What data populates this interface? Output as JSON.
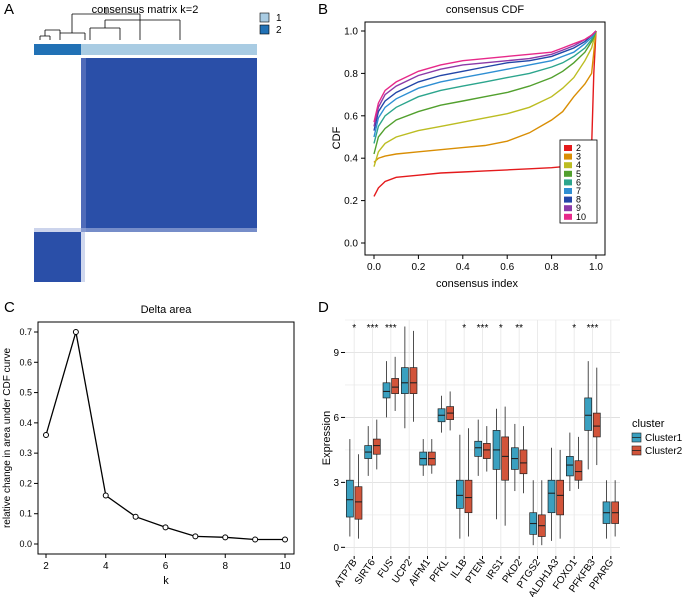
{
  "chart_data": [
    {
      "panel": "A",
      "type": "heatmap",
      "title": "consensus matrix k=2",
      "legend": [
        {
          "label": "1",
          "color": "#a9cce3"
        },
        {
          "label": "2",
          "color": "#2171b5"
        }
      ],
      "colors": {
        "high": "#2a4fa8",
        "low": "#ffffff"
      }
    },
    {
      "panel": "B",
      "type": "line",
      "title": "consensus CDF",
      "xlabel": "consensus index",
      "ylabel": "CDF",
      "xlim": [
        0,
        1
      ],
      "ylim": [
        0,
        1
      ],
      "ticks": [
        "0.0",
        "0.2",
        "0.4",
        "0.6",
        "0.8",
        "1.0"
      ],
      "x": [
        0,
        0.02,
        0.05,
        0.1,
        0.2,
        0.3,
        0.4,
        0.5,
        0.6,
        0.7,
        0.8,
        0.85,
        0.9,
        0.95,
        0.98,
        0.99,
        1.0
      ],
      "series": [
        {
          "name": "2",
          "color": "#e41a1c",
          "values": [
            0.22,
            0.26,
            0.29,
            0.31,
            0.32,
            0.33,
            0.335,
            0.34,
            0.345,
            0.35,
            0.355,
            0.36,
            0.37,
            0.38,
            0.45,
            0.8,
            1.0
          ]
        },
        {
          "name": "3",
          "color": "#d98e04",
          "values": [
            0.38,
            0.4,
            0.41,
            0.42,
            0.43,
            0.44,
            0.45,
            0.46,
            0.48,
            0.52,
            0.58,
            0.62,
            0.69,
            0.75,
            0.8,
            0.9,
            1.0
          ]
        },
        {
          "name": "4",
          "color": "#bcbd22",
          "values": [
            0.36,
            0.43,
            0.47,
            0.5,
            0.53,
            0.55,
            0.57,
            0.59,
            0.61,
            0.64,
            0.69,
            0.73,
            0.78,
            0.86,
            0.92,
            0.96,
            1.0
          ]
        },
        {
          "name": "5",
          "color": "#52a02e",
          "values": [
            0.42,
            0.5,
            0.54,
            0.58,
            0.62,
            0.65,
            0.67,
            0.69,
            0.71,
            0.74,
            0.78,
            0.81,
            0.85,
            0.9,
            0.95,
            0.97,
            1.0
          ]
        },
        {
          "name": "6",
          "color": "#2ca58d",
          "values": [
            0.47,
            0.55,
            0.6,
            0.64,
            0.69,
            0.72,
            0.74,
            0.76,
            0.78,
            0.8,
            0.83,
            0.85,
            0.88,
            0.92,
            0.96,
            0.98,
            1.0
          ]
        },
        {
          "name": "7",
          "color": "#2f8fd3",
          "values": [
            0.5,
            0.59,
            0.64,
            0.68,
            0.73,
            0.76,
            0.78,
            0.8,
            0.82,
            0.84,
            0.86,
            0.88,
            0.9,
            0.94,
            0.97,
            0.985,
            1.0
          ]
        },
        {
          "name": "8",
          "color": "#2346a8",
          "values": [
            0.53,
            0.62,
            0.67,
            0.71,
            0.76,
            0.79,
            0.81,
            0.83,
            0.85,
            0.86,
            0.88,
            0.9,
            0.92,
            0.95,
            0.98,
            0.99,
            1.0
          ]
        },
        {
          "name": "9",
          "color": "#8b3aa8",
          "values": [
            0.55,
            0.64,
            0.7,
            0.74,
            0.79,
            0.82,
            0.84,
            0.85,
            0.86,
            0.87,
            0.89,
            0.91,
            0.93,
            0.96,
            0.98,
            0.99,
            1.0
          ]
        },
        {
          "name": "10",
          "color": "#e7298a",
          "values": [
            0.57,
            0.66,
            0.72,
            0.76,
            0.81,
            0.84,
            0.86,
            0.87,
            0.88,
            0.89,
            0.9,
            0.92,
            0.94,
            0.96,
            0.98,
            0.99,
            1.0
          ]
        }
      ]
    },
    {
      "panel": "C",
      "type": "line",
      "title": "Delta area",
      "xlabel": "k",
      "ylabel": "relative change in area under CDF curve",
      "x": [
        2,
        3,
        4,
        5,
        6,
        7,
        8,
        9,
        10
      ],
      "values": [
        0.36,
        0.7,
        0.16,
        0.09,
        0.055,
        0.025,
        0.022,
        0.015,
        0.015
      ],
      "xlim": [
        2,
        10
      ],
      "ylim": [
        0,
        0.7
      ],
      "xticks": [
        2,
        4,
        6,
        8,
        10
      ],
      "yticks": [
        "0.0",
        "0.1",
        "0.2",
        "0.3",
        "0.4",
        "0.5",
        "0.6",
        "0.7"
      ]
    },
    {
      "panel": "D",
      "type": "box",
      "ylabel": "Expression",
      "ylim": [
        0,
        10.5
      ],
      "yticks": [
        0,
        3,
        6,
        9
      ],
      "legend_title": "cluster",
      "series_names": [
        "Cluster1",
        "Cluster2"
      ],
      "series_colors": [
        "#3aa0c0",
        "#d2543a"
      ],
      "categories": [
        "ATP7B",
        "SIRT6",
        "FUS",
        "UCP2",
        "AIFM1",
        "PFKL",
        "IL1B",
        "PTEN",
        "IRS1",
        "PKD2",
        "PTGS2",
        "ALDH1A3",
        "FOXO1",
        "PFKFB3",
        "PPARG"
      ],
      "significance": [
        "*",
        "***",
        "***",
        "",
        "",
        "",
        "*",
        "***",
        "*",
        "**",
        "",
        "",
        "*",
        "***",
        ""
      ],
      "cluster1": [
        {
          "min": 0.5,
          "q1": 1.4,
          "median": 2.2,
          "q3": 3.1,
          "max": 5.0
        },
        {
          "min": 3.3,
          "q1": 4.1,
          "median": 4.4,
          "q3": 4.7,
          "max": 5.6
        },
        {
          "min": 6.0,
          "q1": 6.9,
          "median": 7.2,
          "q3": 7.6,
          "max": 8.6
        },
        {
          "min": 5.5,
          "q1": 7.1,
          "median": 7.6,
          "q3": 8.3,
          "max": 10.2
        },
        {
          "min": 3.3,
          "q1": 3.8,
          "median": 4.1,
          "q3": 4.4,
          "max": 5.0
        },
        {
          "min": 5.3,
          "q1": 5.8,
          "median": 6.1,
          "q3": 6.4,
          "max": 7.0
        },
        {
          "min": 0.4,
          "q1": 1.8,
          "median": 2.4,
          "q3": 3.1,
          "max": 5.2
        },
        {
          "min": 3.3,
          "q1": 4.2,
          "median": 4.6,
          "q3": 4.9,
          "max": 5.9
        },
        {
          "min": 1.3,
          "q1": 3.6,
          "median": 4.5,
          "q3": 5.4,
          "max": 6.4
        },
        {
          "min": 2.6,
          "q1": 3.6,
          "median": 4.1,
          "q3": 4.6,
          "max": 5.7
        },
        {
          "min": 0.1,
          "q1": 0.6,
          "median": 1.1,
          "q3": 1.6,
          "max": 3.1
        },
        {
          "min": 0.3,
          "q1": 1.6,
          "median": 2.5,
          "q3": 3.1,
          "max": 4.6
        },
        {
          "min": 2.6,
          "q1": 3.3,
          "median": 3.8,
          "q3": 4.2,
          "max": 5.3
        },
        {
          "min": 3.6,
          "q1": 5.4,
          "median": 6.1,
          "q3": 6.9,
          "max": 8.6
        },
        {
          "min": 0.4,
          "q1": 1.1,
          "median": 1.6,
          "q3": 2.1,
          "max": 3.1
        }
      ],
      "cluster2": [
        {
          "min": 0.4,
          "q1": 1.3,
          "median": 2.1,
          "q3": 2.8,
          "max": 4.3
        },
        {
          "min": 3.6,
          "q1": 4.3,
          "median": 4.7,
          "q3": 5.0,
          "max": 5.9
        },
        {
          "min": 6.3,
          "q1": 7.1,
          "median": 7.4,
          "q3": 7.8,
          "max": 8.8
        },
        {
          "min": 5.8,
          "q1": 7.1,
          "median": 7.6,
          "q3": 8.3,
          "max": 10.0
        },
        {
          "min": 3.4,
          "q1": 3.8,
          "median": 4.1,
          "q3": 4.4,
          "max": 5.0
        },
        {
          "min": 5.4,
          "q1": 5.9,
          "median": 6.2,
          "q3": 6.5,
          "max": 7.2
        },
        {
          "min": 0.5,
          "q1": 1.6,
          "median": 2.3,
          "q3": 3.1,
          "max": 5.5
        },
        {
          "min": 3.5,
          "q1": 4.1,
          "median": 4.5,
          "q3": 4.8,
          "max": 5.6
        },
        {
          "min": 1.0,
          "q1": 3.1,
          "median": 4.2,
          "q3": 5.1,
          "max": 6.5
        },
        {
          "min": 2.5,
          "q1": 3.4,
          "median": 3.9,
          "q3": 4.5,
          "max": 5.6
        },
        {
          "min": 0.1,
          "q1": 0.5,
          "median": 1.0,
          "q3": 1.5,
          "max": 3.1
        },
        {
          "min": 0.4,
          "q1": 1.5,
          "median": 2.4,
          "q3": 3.1,
          "max": 4.5
        },
        {
          "min": 2.7,
          "q1": 3.1,
          "median": 3.5,
          "q3": 4.0,
          "max": 5.1
        },
        {
          "min": 3.8,
          "q1": 5.1,
          "median": 5.6,
          "q3": 6.2,
          "max": 8.3
        },
        {
          "min": 0.5,
          "q1": 1.1,
          "median": 1.6,
          "q3": 2.1,
          "max": 3.1
        }
      ]
    }
  ]
}
